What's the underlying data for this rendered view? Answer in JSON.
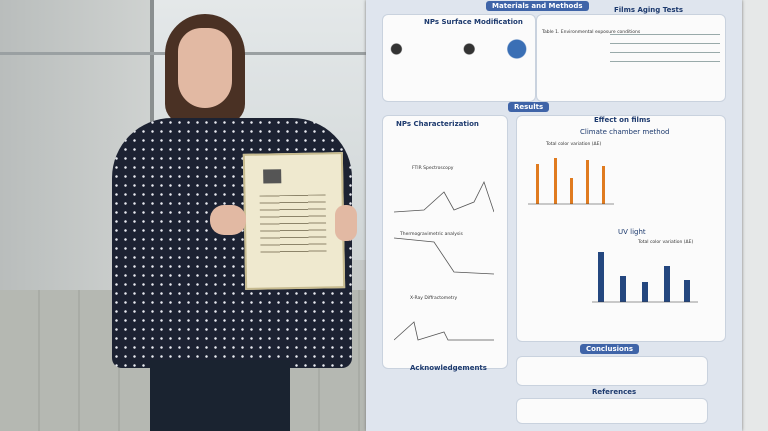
{
  "poster": {
    "header": {
      "title": "Materials and Methods"
    },
    "methods": {
      "left_title": "NPs Surface Modification",
      "right_title": "Films Aging Tests",
      "table_caption": "Table 1. Environmental exposure conditions"
    },
    "results": {
      "title": "Results",
      "left": {
        "title": "NPs Characterization",
        "panels": [
          "FTIR Spectroscopy",
          "Thermogravimetric analysis",
          "X-Ray Diffractometry"
        ]
      },
      "right": {
        "title": "Effect on films",
        "subtitle": "Climate chamber method",
        "chart1_title": "Total color variation (ΔE)",
        "uv_title": "UV light",
        "chart2_title": "Total color variation (ΔE)"
      }
    },
    "acknowledgements": "Acknowledgements",
    "conclusions": "Conclusions",
    "references": "References"
  }
}
